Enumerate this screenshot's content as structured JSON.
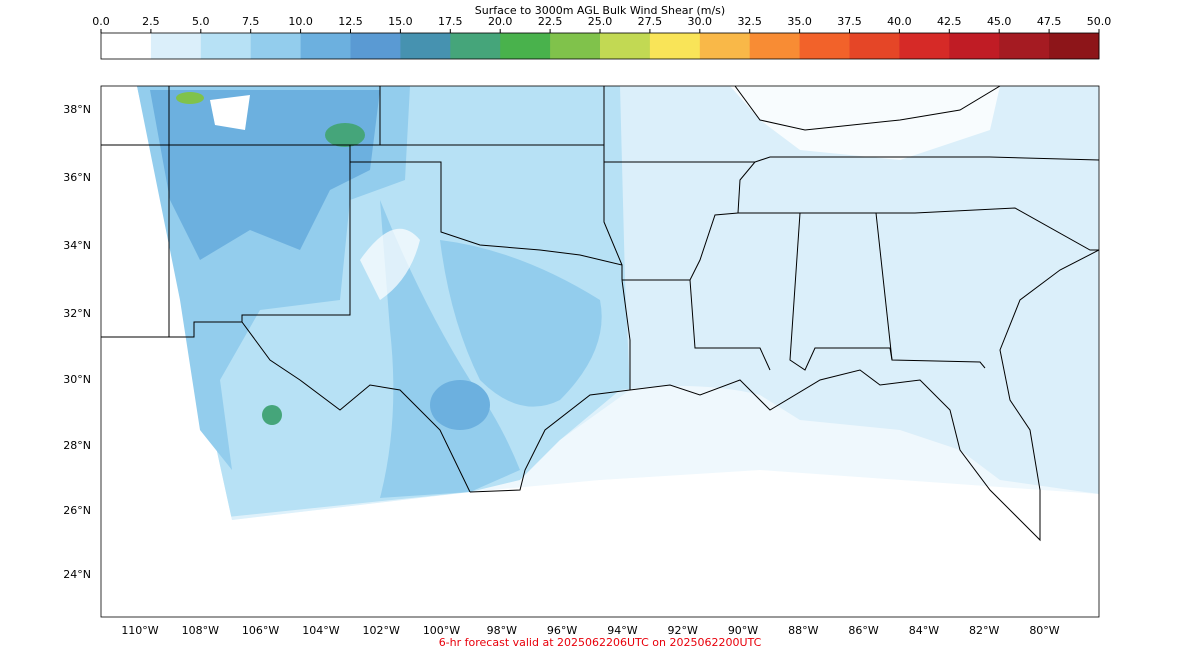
{
  "header": {
    "title": "Surface to 3000m AGL Bulk Wind Shear (m/s)"
  },
  "colorbar": {
    "ticks": [
      "0.0",
      "2.5",
      "5.0",
      "7.5",
      "10.0",
      "12.5",
      "15.0",
      "17.5",
      "20.0",
      "22.5",
      "25.0",
      "27.5",
      "30.0",
      "32.5",
      "35.0",
      "37.5",
      "40.0",
      "42.5",
      "45.0",
      "47.5",
      "50.0"
    ]
  },
  "map": {
    "lat_labels": [
      "38°N",
      "36°N",
      "34°N",
      "32°N",
      "30°N",
      "28°N",
      "26°N",
      "24°N"
    ],
    "lon_labels": [
      "110°W",
      "108°W",
      "106°W",
      "104°W",
      "102°W",
      "100°W",
      "98°W",
      "96°W",
      "94°W",
      "92°W",
      "90°W",
      "88°W",
      "86°W",
      "84°W",
      "82°W",
      "80°W"
    ]
  },
  "footer": {
    "text": "6-hr forecast valid at 2025062206UTC on 2025062200UTC"
  }
}
